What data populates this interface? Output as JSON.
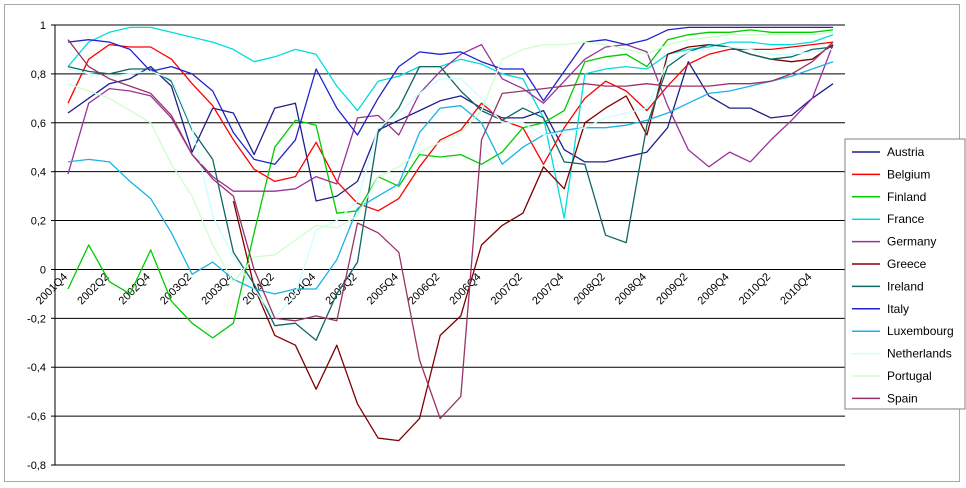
{
  "chart_data": {
    "type": "line",
    "ylim": [
      -0.8,
      1
    ],
    "y_ticks": [
      1,
      0.8,
      0.6,
      0.4,
      0.2,
      0,
      -0.2,
      -0.4,
      -0.6,
      -0.8
    ],
    "y_tick_labels": [
      "1",
      "0,8",
      "0,6",
      "0,4",
      "0,2",
      "0",
      "-0,2",
      "-0,4",
      "-0,6",
      "-0,8"
    ],
    "grid": "horizontal",
    "legend_position": "right",
    "categories": [
      "2001Q4",
      "2002Q1",
      "2002Q2",
      "2002Q3",
      "2002Q4",
      "2003Q1",
      "2003Q2",
      "2003Q3",
      "2003Q4",
      "2004Q1",
      "2004Q2",
      "2004Q3",
      "2004Q4",
      "2005Q1",
      "2005Q2",
      "2005Q3",
      "2005Q4",
      "2006Q1",
      "2006Q2",
      "2006Q3",
      "2006Q4",
      "2007Q1",
      "2007Q2",
      "2007Q3",
      "2007Q4",
      "2008Q1",
      "2008Q2",
      "2008Q3",
      "2008Q4",
      "2009Q1",
      "2009Q2",
      "2009Q3",
      "2009Q4",
      "2010Q1",
      "2010Q2",
      "2010Q3",
      "2010Q4",
      "2011Q1"
    ],
    "x_tick_labels": [
      "2001Q4",
      "2002Q2",
      "2002Q4",
      "2003Q2",
      "2003Q4",
      "2004Q2",
      "2004Q4",
      "2005Q2",
      "2005Q4",
      "2006Q2",
      "2006Q4",
      "2007Q2",
      "2007Q4",
      "2008Q2",
      "2008Q4",
      "2009Q2",
      "2009Q4",
      "2010Q2",
      "2010Q4"
    ],
    "series": [
      {
        "name": "Austria",
        "color": "#1f1f8c",
        "values": [
          0.64,
          0.7,
          0.76,
          0.78,
          0.83,
          0.75,
          0.48,
          0.66,
          0.64,
          0.47,
          0.66,
          0.68,
          0.28,
          0.3,
          0.36,
          0.57,
          0.61,
          0.65,
          0.69,
          0.71,
          0.66,
          0.62,
          0.62,
          0.65,
          0.49,
          0.44,
          0.44,
          0.46,
          0.48,
          0.58,
          0.85,
          0.71,
          0.66,
          0.66,
          0.62,
          0.63,
          0.7,
          0.76
        ]
      },
      {
        "name": "Belgium",
        "color": "#ff0000",
        "values": [
          0.68,
          0.86,
          0.92,
          0.91,
          0.91,
          0.86,
          0.76,
          0.67,
          0.53,
          0.41,
          0.36,
          0.38,
          0.52,
          0.36,
          0.27,
          0.24,
          0.29,
          0.42,
          0.53,
          0.57,
          0.68,
          0.61,
          0.58,
          0.43,
          0.58,
          0.7,
          0.77,
          0.73,
          0.65,
          0.75,
          0.84,
          0.88,
          0.9,
          0.9,
          0.9,
          0.91,
          0.92,
          0.93
        ]
      },
      {
        "name": "Finland",
        "color": "#00cc00",
        "values": [
          -0.08,
          0.1,
          -0.05,
          -0.1,
          0.08,
          -0.13,
          -0.22,
          -0.28,
          -0.22,
          0.15,
          0.5,
          0.61,
          0.59,
          0.23,
          0.24,
          0.38,
          0.34,
          0.47,
          0.46,
          0.47,
          0.43,
          0.48,
          0.58,
          0.6,
          0.65,
          0.85,
          0.87,
          0.88,
          0.83,
          0.94,
          0.96,
          0.97,
          0.97,
          0.98,
          0.97,
          0.97,
          0.97,
          0.98
        ]
      },
      {
        "name": "France",
        "color": "#00dddd",
        "values": [
          0.83,
          0.93,
          0.97,
          0.99,
          0.99,
          0.97,
          0.95,
          0.93,
          0.9,
          0.85,
          0.87,
          0.9,
          0.88,
          0.75,
          0.65,
          0.77,
          0.79,
          0.83,
          0.83,
          0.86,
          0.84,
          0.8,
          0.78,
          0.62,
          0.21,
          0.8,
          0.82,
          0.83,
          0.82,
          0.88,
          0.9,
          0.91,
          0.93,
          0.93,
          0.92,
          0.92,
          0.93,
          0.96
        ]
      },
      {
        "name": "Germany",
        "color": "#993399",
        "values": [
          0.39,
          0.68,
          0.74,
          0.73,
          0.71,
          0.62,
          0.47,
          0.38,
          0.32,
          0.32,
          0.32,
          0.33,
          0.38,
          0.35,
          0.62,
          0.63,
          0.55,
          0.72,
          0.81,
          0.88,
          0.92,
          0.78,
          0.74,
          0.68,
          0.77,
          0.86,
          0.91,
          0.92,
          0.89,
          0.67,
          0.49,
          0.42,
          0.48,
          0.44,
          0.53,
          0.61,
          0.7,
          0.92
        ]
      },
      {
        "name": "Greece",
        "color": "#800000",
        "values": [
          null,
          null,
          null,
          null,
          null,
          null,
          null,
          null,
          0.28,
          -0.07,
          -0.27,
          -0.31,
          -0.49,
          -0.31,
          -0.55,
          -0.69,
          -0.7,
          -0.61,
          -0.27,
          -0.19,
          0.1,
          0.18,
          0.23,
          0.42,
          0.33,
          0.6,
          0.66,
          0.71,
          0.55,
          0.88,
          0.91,
          0.92,
          0.91,
          0.88,
          0.86,
          0.85,
          0.86,
          0.92
        ]
      },
      {
        "name": "Ireland",
        "color": "#116666",
        "values": [
          0.83,
          0.81,
          0.8,
          0.82,
          0.82,
          0.77,
          0.57,
          0.45,
          0.07,
          -0.06,
          -0.23,
          -0.22,
          -0.29,
          -0.1,
          0.03,
          0.56,
          0.66,
          0.83,
          0.83,
          0.73,
          0.65,
          0.61,
          0.66,
          0.62,
          0.44,
          0.43,
          0.14,
          0.11,
          0.59,
          0.83,
          0.89,
          0.92,
          0.91,
          0.88,
          0.86,
          0.87,
          0.9,
          0.91
        ]
      },
      {
        "name": "Italy",
        "color": "#2222cc",
        "values": [
          0.93,
          0.94,
          0.93,
          0.9,
          0.81,
          0.83,
          0.8,
          0.73,
          0.56,
          0.45,
          0.43,
          0.53,
          0.82,
          0.66,
          0.55,
          0.7,
          0.83,
          0.89,
          0.88,
          0.89,
          0.85,
          0.82,
          0.82,
          0.69,
          0.81,
          0.93,
          0.94,
          0.92,
          0.94,
          0.98,
          0.99,
          0.99,
          0.99,
          0.99,
          0.99,
          0.99,
          0.99,
          0.99
        ]
      },
      {
        "name": "Luxembourg",
        "color": "#1ab2e8",
        "values": [
          0.44,
          0.45,
          0.44,
          0.36,
          0.29,
          0.15,
          -0.02,
          0.03,
          -0.04,
          -0.08,
          -0.1,
          -0.08,
          -0.08,
          0.04,
          0.25,
          0.3,
          0.35,
          0.56,
          0.66,
          0.67,
          0.6,
          0.43,
          0.5,
          0.55,
          0.57,
          0.58,
          0.58,
          0.59,
          0.61,
          0.64,
          0.68,
          0.72,
          0.73,
          0.75,
          0.77,
          0.79,
          0.82,
          0.85
        ]
      },
      {
        "name": "Netherlands",
        "color": "#ccffff",
        "values": [
          0.82,
          0.8,
          0.79,
          0.8,
          0.81,
          0.78,
          0.58,
          0.22,
          0.05,
          -0.08,
          -0.2,
          -0.1,
          0.16,
          0.2,
          0.28,
          0.58,
          0.64,
          0.72,
          0.78,
          0.78,
          0.7,
          0.6,
          0.6,
          0.55,
          0.56,
          0.58,
          0.62,
          0.64,
          0.66,
          0.85,
          0.89,
          0.9,
          0.91,
          0.9,
          0.88,
          0.88,
          0.89,
          0.9
        ]
      },
      {
        "name": "Portugal",
        "color": "#ccffcc",
        "values": [
          0.76,
          0.73,
          0.7,
          0.65,
          0.6,
          0.43,
          0.3,
          0.1,
          -0.05,
          0.05,
          0.06,
          0.12,
          0.18,
          0.17,
          0.22,
          0.38,
          0.42,
          0.48,
          0.52,
          0.56,
          0.65,
          0.86,
          0.9,
          0.92,
          0.92,
          0.93,
          0.92,
          0.9,
          0.88,
          0.92,
          0.94,
          0.95,
          0.96,
          0.96,
          0.96,
          0.96,
          0.96,
          0.97
        ]
      },
      {
        "name": "Spain",
        "color": "#993366",
        "values": [
          0.94,
          0.83,
          0.78,
          0.75,
          0.72,
          0.63,
          0.47,
          0.37,
          0.3,
          0.0,
          -0.2,
          -0.21,
          -0.19,
          -0.21,
          0.19,
          0.15,
          0.07,
          -0.37,
          -0.61,
          -0.52,
          0.53,
          0.72,
          0.73,
          0.74,
          0.75,
          0.76,
          0.75,
          0.75,
          0.76,
          0.75,
          0.75,
          0.75,
          0.76,
          0.76,
          0.77,
          0.8,
          0.85,
          0.93
        ]
      }
    ]
  }
}
